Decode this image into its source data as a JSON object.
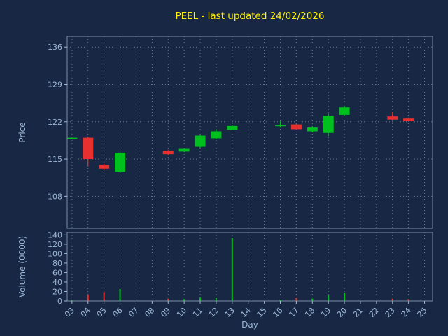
{
  "title": {
    "text": "PEEL - last updated 24/02/2026",
    "color": "#ffef00"
  },
  "axes": {
    "x_label": "Day",
    "price_label": "Price",
    "volume_label": "Volume (0000)"
  },
  "colors": {
    "background": "#182844",
    "frame": "#7a8ba3",
    "grid": "#c8d4e4",
    "tick_text": "#9db9d8",
    "up": "#00c01e",
    "down": "#e8312e"
  },
  "chart_data": {
    "type": "candlestick-with-volume",
    "title": "PEEL - last updated 24/02/2026",
    "xlabel": "Day",
    "price_ylabel": "Price",
    "volume_ylabel": "Volume (0000)",
    "legend": "none",
    "grid": "dotted",
    "x_ticks": [
      "03",
      "04",
      "05",
      "06",
      "07",
      "08",
      "09",
      "10",
      "11",
      "12",
      "13",
      "14",
      "15",
      "16",
      "17",
      "18",
      "19",
      "20",
      "21",
      "22",
      "23",
      "24",
      "25"
    ],
    "x_tick_days": [
      3,
      4,
      5,
      6,
      7,
      8,
      9,
      10,
      11,
      12,
      13,
      14,
      15,
      16,
      17,
      18,
      19,
      20,
      21,
      22,
      23,
      24,
      25
    ],
    "x_range": [
      2.7,
      25.5
    ],
    "price_ticks": [
      108,
      115,
      122,
      129,
      136
    ],
    "price_range": [
      102,
      138
    ],
    "volume_ticks": [
      0,
      20,
      40,
      60,
      80,
      100,
      120,
      140
    ],
    "volume_range": [
      0,
      145
    ],
    "candles": [
      {
        "day": 3,
        "open": 119.0,
        "high": 119.0,
        "low": 119.0,
        "close": 119.0
      },
      {
        "day": 4,
        "open": 119.0,
        "high": 119.2,
        "low": 113.6,
        "close": 115.0
      },
      {
        "day": 5,
        "open": 113.9,
        "high": 114.1,
        "low": 112.9,
        "close": 113.2
      },
      {
        "day": 6,
        "open": 112.6,
        "high": 116.4,
        "low": 112.3,
        "close": 116.2
      },
      {
        "day": 9,
        "open": 116.5,
        "high": 116.7,
        "low": 115.7,
        "close": 115.9
      },
      {
        "day": 10,
        "open": 116.4,
        "high": 117.0,
        "low": 116.3,
        "close": 116.9
      },
      {
        "day": 11,
        "open": 117.3,
        "high": 119.5,
        "low": 117.1,
        "close": 119.4
      },
      {
        "day": 12,
        "open": 118.9,
        "high": 120.6,
        "low": 118.7,
        "close": 120.2
      },
      {
        "day": 13,
        "open": 120.5,
        "high": 121.4,
        "low": 120.4,
        "close": 121.2
      },
      {
        "day": 16,
        "open": 121.4,
        "high": 122.1,
        "low": 120.9,
        "close": 121.4
      },
      {
        "day": 17,
        "open": 121.5,
        "high": 121.8,
        "low": 120.4,
        "close": 120.6
      },
      {
        "day": 18,
        "open": 120.2,
        "high": 121.1,
        "low": 120.0,
        "close": 120.9
      },
      {
        "day": 19,
        "open": 119.9,
        "high": 123.5,
        "low": 119.3,
        "close": 123.1
      },
      {
        "day": 20,
        "open": 123.3,
        "high": 124.9,
        "low": 123.1,
        "close": 124.7
      },
      {
        "day": 23,
        "open": 123.0,
        "high": 123.8,
        "low": 122.3,
        "close": 122.4
      },
      {
        "day": 24,
        "open": 122.6,
        "high": 122.8,
        "low": 122.0,
        "close": 122.1
      }
    ],
    "volumes": [
      {
        "day": 3,
        "value": 2
      },
      {
        "day": 4,
        "value": 13
      },
      {
        "day": 5,
        "value": 19
      },
      {
        "day": 6,
        "value": 25
      },
      {
        "day": 9,
        "value": 5
      },
      {
        "day": 10,
        "value": 4
      },
      {
        "day": 11,
        "value": 7
      },
      {
        "day": 12,
        "value": 6
      },
      {
        "day": 13,
        "value": 133
      },
      {
        "day": 16,
        "value": 3
      },
      {
        "day": 17,
        "value": 6
      },
      {
        "day": 18,
        "value": 5
      },
      {
        "day": 19,
        "value": 12
      },
      {
        "day": 20,
        "value": 17
      },
      {
        "day": 23,
        "value": 5
      },
      {
        "day": 24,
        "value": 4
      }
    ]
  }
}
